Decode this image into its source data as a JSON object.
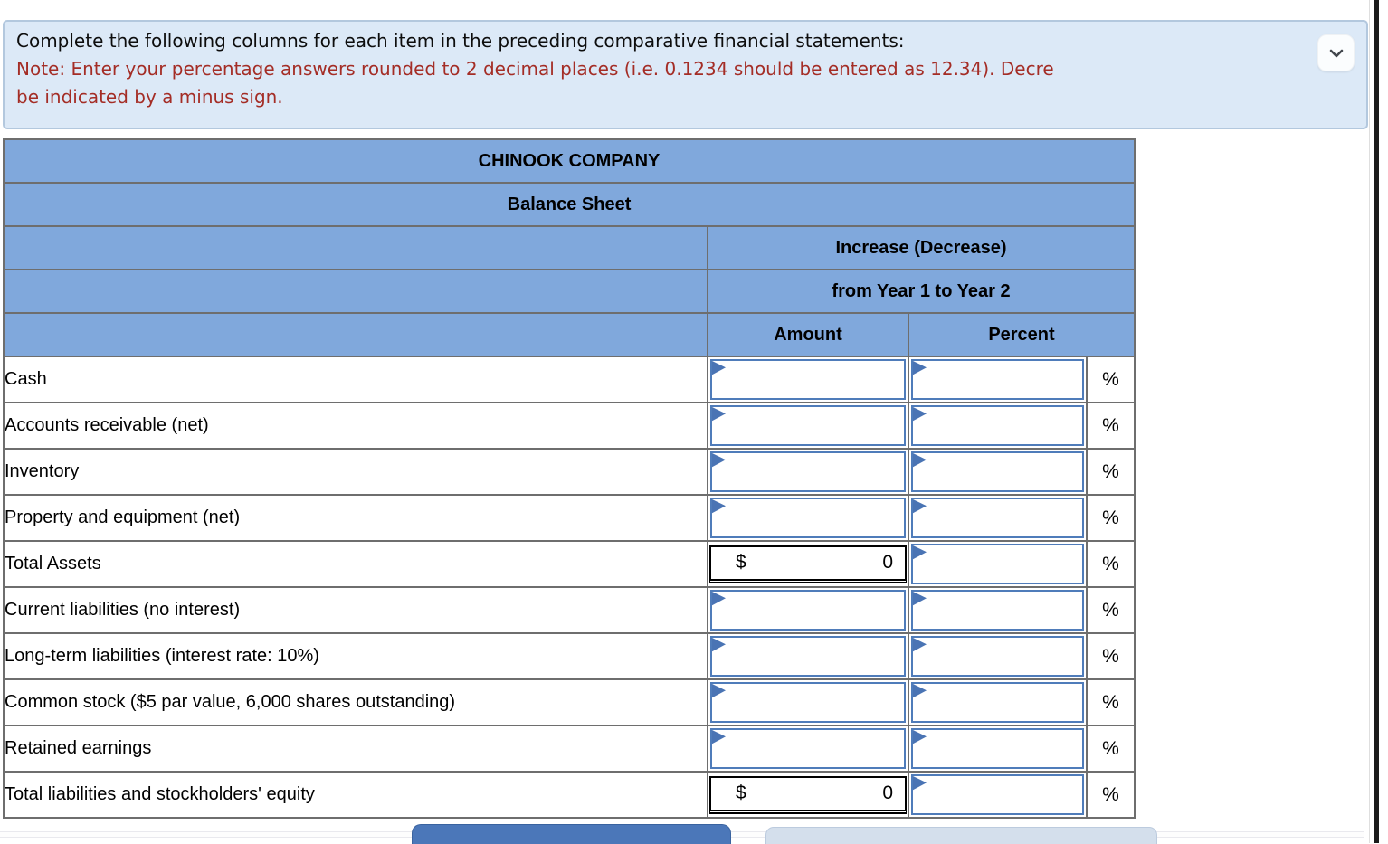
{
  "instructions": {
    "line1": "Complete the following columns for each item in the preceding comparative financial statements:",
    "note_line1": "Note: Enter your percentage answers rounded to 2 decimal places (i.e. 0.1234 should be entered as 12.34). Decre",
    "note_line2": "be indicated by a minus sign."
  },
  "collapse_button": {
    "icon": "chevron-down"
  },
  "table": {
    "title": "CHINOOK COMPANY",
    "subtitle": "Balance Sheet",
    "col_group_line1": "Increase (Decrease)",
    "col_group_line2": "from Year 1 to Year 2",
    "col_amount": "Amount",
    "col_percent": "Percent",
    "percent_suffix": "%",
    "rows": [
      {
        "label": "Cash",
        "type": "input"
      },
      {
        "label": "Accounts receivable (net)",
        "type": "input"
      },
      {
        "label": "Inventory",
        "type": "input"
      },
      {
        "label": "Property and equipment (net)",
        "type": "input"
      },
      {
        "label": "Total Assets",
        "type": "total",
        "currency": "$",
        "amount_value": "0"
      },
      {
        "label": "Current liabilities (no interest)",
        "type": "input"
      },
      {
        "label": "Long-term liabilities (interest rate: 10%)",
        "type": "input"
      },
      {
        "label": "Common stock ($5 par value, 6,000 shares outstanding)",
        "type": "input"
      },
      {
        "label": "Retained earnings",
        "type": "input"
      },
      {
        "label": "Total liabilities and stockholders' equity",
        "type": "total",
        "currency": "$",
        "amount_value": "0"
      }
    ]
  },
  "colors": {
    "header_blue": "#80a8dc",
    "table_border_gray": "#6e6e6e",
    "input_border_blue": "#4f7cba",
    "flag_blue": "#4a74b4",
    "note_red": "#a42d26",
    "banner_bg": "#dce9f7",
    "banner_border": "#b3c8de",
    "button_dark_blue": "#4b77b9",
    "button_light_blue": "#d4dfec"
  }
}
